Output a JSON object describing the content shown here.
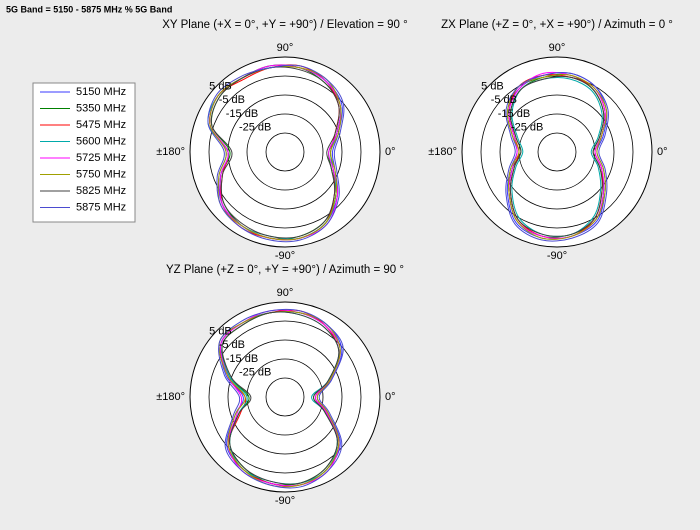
{
  "title": "5G Band = 5150 - 5875 MHz % 5G Band",
  "chart_data": [
    {
      "type": "polar",
      "title": "XY Plane (+X = 0°, +Y = +90°) / Elevation = 90 °",
      "theta": [
        0,
        20,
        40,
        60,
        80,
        100,
        120,
        140,
        160,
        180,
        200,
        220,
        240,
        260,
        280,
        300,
        320,
        340
      ],
      "rlim": [
        -35,
        15
      ],
      "rticks": [
        {
          "value": -25,
          "label": "-25 dB"
        },
        {
          "value": -15,
          "label": "-15 dB"
        },
        {
          "value": -5,
          "label": "-5 dB"
        },
        {
          "value": 5,
          "label": "5 dB"
        }
      ],
      "thetaticks": [
        {
          "value": 90,
          "label": "90°"
        },
        {
          "value": 0,
          "label": "0°"
        },
        {
          "value": -90,
          "label": "-90°"
        },
        {
          "value": 180,
          "label": "±180°"
        }
      ],
      "series": [
        {
          "name": "5150 MHz",
          "color": "#3a3aff",
          "values": [
            -10,
            -5,
            4,
            8,
            10,
            10,
            10,
            11,
            7,
            -4,
            2,
            8,
            10,
            11,
            11,
            8,
            1,
            -7
          ]
        },
        {
          "name": "5350 MHz",
          "color": "#008000",
          "values": [
            -12,
            -6,
            3,
            7,
            10,
            11,
            10,
            10,
            6,
            -6,
            1,
            7,
            10,
            11,
            10,
            7,
            0,
            -9
          ]
        },
        {
          "name": "5475 MHz",
          "color": "#ff0000",
          "values": [
            -11,
            -7,
            2,
            8,
            11,
            10,
            9,
            11,
            7,
            -5,
            0,
            8,
            11,
            11,
            11,
            8,
            -1,
            -8
          ]
        },
        {
          "name": "5600 MHz",
          "color": "#00aaaa",
          "values": [
            -11,
            -6,
            3,
            8,
            10,
            10,
            10,
            11,
            8,
            -5,
            1,
            8,
            10,
            10,
            11,
            8,
            0,
            -8
          ]
        },
        {
          "name": "5725 MHz",
          "color": "#ff00ff",
          "values": [
            -12,
            -6,
            3,
            8,
            10,
            11,
            10,
            11,
            7,
            -5,
            1,
            8,
            10,
            11,
            11,
            9,
            1,
            -8
          ]
        },
        {
          "name": "5750 MHz",
          "color": "#a0a000",
          "values": [
            -11,
            -5,
            3,
            9,
            10,
            10,
            10,
            11,
            7,
            -4,
            2,
            9,
            10,
            11,
            11,
            8,
            0,
            -7
          ]
        },
        {
          "name": "5825 MHz",
          "color": "#404040",
          "values": [
            -13,
            -7,
            2,
            7,
            9,
            10,
            10,
            10,
            6,
            -7,
            0,
            7,
            9,
            10,
            10,
            7,
            -1,
            -9
          ]
        },
        {
          "name": "5875 MHz",
          "color": "#4b4bd0",
          "values": [
            -9,
            -4,
            5,
            9,
            11,
            10,
            11,
            12,
            8,
            -3,
            3,
            9,
            11,
            12,
            12,
            9,
            2,
            -6
          ]
        }
      ]
    },
    {
      "type": "polar",
      "title": "ZX Plane (+Z = 0°, +X = +90°) / Azimuth = 0 °",
      "theta": [
        0,
        20,
        40,
        60,
        80,
        100,
        120,
        140,
        160,
        180,
        200,
        220,
        240,
        260,
        280,
        300,
        320,
        340
      ],
      "rlim": [
        -35,
        15
      ],
      "rticks": [
        {
          "value": -25,
          "label": "-25 dB"
        },
        {
          "value": -15,
          "label": "-15 dB"
        },
        {
          "value": -5,
          "label": "-5 dB"
        },
        {
          "value": 5,
          "label": "5 dB"
        }
      ],
      "thetaticks": [
        {
          "value": 90,
          "label": "90°"
        },
        {
          "value": 0,
          "label": "0°"
        },
        {
          "value": -90,
          "label": "-90°"
        },
        {
          "value": 180,
          "label": "±180°"
        }
      ],
      "series": [
        {
          "values": [
            -14,
            -9,
            -1,
            5,
            7,
            6,
            4,
            -1,
            -10,
            -14,
            -9,
            -1,
            8,
            11,
            10,
            7,
            -2,
            -9
          ]
        },
        {
          "values": [
            -16,
            -11,
            -3,
            3,
            6,
            5,
            3,
            -3,
            -12,
            -16,
            -10,
            -2,
            7,
            10,
            9,
            6,
            -3,
            -11
          ]
        },
        {
          "values": [
            -15,
            -10,
            -2,
            4,
            5,
            6,
            5,
            -2,
            -11,
            -15,
            -11,
            -3,
            6,
            10,
            10,
            5,
            -4,
            -10
          ]
        },
        {
          "values": [
            -17,
            -12,
            -4,
            2,
            4,
            4,
            3,
            -4,
            -13,
            -17,
            -12,
            -4,
            5,
            9,
            9,
            4,
            -5,
            -12
          ]
        },
        {
          "values": [
            -15,
            -10,
            -2,
            4,
            6,
            7,
            4,
            -2,
            -11,
            -14,
            -10,
            -2,
            7,
            10,
            10,
            6,
            -3,
            -10
          ]
        },
        {
          "values": [
            -14,
            -10,
            -1,
            4,
            6,
            5,
            5,
            -1,
            -10,
            -15,
            -9,
            -2,
            7,
            11,
            10,
            6,
            -2,
            -9
          ]
        },
        {
          "values": [
            -16,
            -11,
            -3,
            3,
            5,
            4,
            3,
            -3,
            -12,
            -16,
            -11,
            -3,
            6,
            9,
            9,
            5,
            -4,
            -11
          ]
        },
        {
          "values": [
            -13,
            -8,
            0,
            5,
            7,
            6,
            5,
            0,
            -9,
            -13,
            -8,
            0,
            9,
            12,
            11,
            8,
            -1,
            -8
          ]
        }
      ]
    },
    {
      "type": "polar",
      "title": "YZ Plane (+Z = 0°, +Y = +90°) / Azimuth = 90 °",
      "theta": [
        0,
        20,
        40,
        60,
        80,
        100,
        120,
        140,
        160,
        180,
        200,
        220,
        240,
        260,
        280,
        300,
        320,
        340
      ],
      "rlim": [
        -35,
        15
      ],
      "rticks": [
        {
          "value": -25,
          "label": "-25 dB"
        },
        {
          "value": -15,
          "label": "-15 dB"
        },
        {
          "value": -5,
          "label": "-5 dB"
        },
        {
          "value": 5,
          "label": "5 dB"
        }
      ],
      "thetaticks": [
        {
          "value": 90,
          "label": "90°"
        },
        {
          "value": 0,
          "label": "0°"
        },
        {
          "value": -90,
          "label": "-90°"
        },
        {
          "value": 180,
          "label": "±180°"
        }
      ],
      "series": [
        {
          "values": [
            -18,
            -9,
            4,
            9,
            10,
            10,
            10,
            9,
            -2,
            -13,
            -7,
            5,
            9,
            11,
            12,
            9,
            3,
            -11
          ]
        },
        {
          "values": [
            -20,
            -11,
            3,
            8,
            10,
            10,
            9,
            8,
            -4,
            -16,
            -9,
            3,
            8,
            11,
            11,
            8,
            1,
            -13
          ]
        },
        {
          "values": [
            -19,
            -10,
            2,
            8,
            11,
            10,
            10,
            9,
            -3,
            -14,
            -10,
            4,
            9,
            11,
            12,
            9,
            2,
            -12
          ]
        },
        {
          "values": [
            -21,
            -11,
            2,
            7,
            9,
            10,
            10,
            9,
            -4,
            -15,
            -9,
            3,
            9,
            10,
            11,
            9,
            1,
            -13
          ]
        },
        {
          "values": [
            -19,
            -10,
            3,
            8,
            10,
            11,
            10,
            9,
            -3,
            -12,
            -8,
            4,
            10,
            11,
            12,
            10,
            2,
            -12
          ]
        },
        {
          "values": [
            -18,
            -10,
            3,
            9,
            10,
            10,
            10,
            10,
            -3,
            -14,
            -7,
            4,
            9,
            12,
            12,
            9,
            2,
            -11
          ]
        },
        {
          "values": [
            -20,
            -11,
            2,
            7,
            9,
            10,
            9,
            8,
            -5,
            -17,
            -9,
            3,
            8,
            10,
            11,
            8,
            1,
            -13
          ]
        },
        {
          "values": [
            -17,
            -9,
            5,
            9,
            11,
            11,
            11,
            10,
            -1,
            -11,
            -6,
            6,
            10,
            12,
            13,
            10,
            4,
            -10
          ]
        }
      ]
    }
  ]
}
